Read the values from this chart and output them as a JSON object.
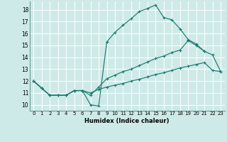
{
  "xlabel": "Humidex (Indice chaleur)",
  "background_color": "#ceeae8",
  "grid_color": "#b8d8d6",
  "line_color": "#1a7a6e",
  "xlim": [
    -0.5,
    23.5
  ],
  "ylim": [
    9.5,
    18.7
  ],
  "xticks": [
    0,
    1,
    2,
    3,
    4,
    5,
    6,
    7,
    8,
    9,
    10,
    11,
    12,
    13,
    14,
    15,
    16,
    17,
    18,
    19,
    20,
    21,
    22,
    23
  ],
  "yticks": [
    10,
    11,
    12,
    13,
    14,
    15,
    16,
    17,
    18
  ],
  "curve1_x": [
    0,
    1,
    2,
    3,
    4,
    5,
    6,
    7,
    8,
    9,
    10,
    11,
    12,
    13,
    14,
    15,
    16,
    17,
    18,
    19,
    20,
    21
  ],
  "curve1_y": [
    12.0,
    11.4,
    10.8,
    10.8,
    10.8,
    11.2,
    11.2,
    10.0,
    9.9,
    15.3,
    16.1,
    16.7,
    17.25,
    17.85,
    18.1,
    18.4,
    17.35,
    17.15,
    16.4,
    15.5,
    15.1,
    14.5
  ],
  "curve2_x": [
    0,
    1,
    2,
    3,
    4,
    5,
    6,
    7,
    8,
    9,
    10,
    11,
    12,
    13,
    14,
    15,
    16,
    17,
    18,
    19,
    20,
    21,
    22,
    23
  ],
  "curve2_y": [
    12.0,
    11.4,
    10.8,
    10.8,
    10.8,
    11.2,
    11.2,
    10.8,
    11.5,
    12.2,
    12.5,
    12.8,
    13.0,
    13.3,
    13.6,
    13.9,
    14.1,
    14.4,
    14.6,
    15.4,
    15.0,
    14.5,
    14.2,
    12.8
  ],
  "curve3_x": [
    0,
    1,
    2,
    3,
    4,
    5,
    6,
    7,
    8,
    9,
    10,
    11,
    12,
    13,
    14,
    15,
    16,
    17,
    18,
    19,
    20,
    21,
    22,
    23
  ],
  "curve3_y": [
    12.0,
    11.4,
    10.8,
    10.8,
    10.8,
    11.2,
    11.2,
    11.0,
    11.3,
    11.5,
    11.65,
    11.8,
    12.0,
    12.15,
    12.35,
    12.55,
    12.7,
    12.9,
    13.1,
    13.25,
    13.4,
    13.55,
    12.9,
    12.8
  ]
}
